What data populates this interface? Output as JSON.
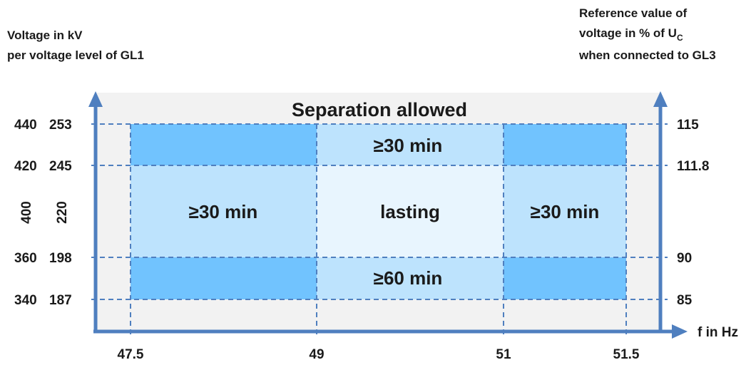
{
  "left_axis_title": [
    "Voltage in kV",
    "per voltage level of GL1"
  ],
  "right_axis_title": {
    "line1": "Reference value of",
    "line2_prefix": "voltage in % of U",
    "line2_sub": "C",
    "line3": "when connected to GL3"
  },
  "x_axis_label": "f in Hz",
  "outer_region_label": "Separation allowed",
  "left_ticks_400": [
    "440",
    "420",
    "400",
    "360",
    "340"
  ],
  "left_ticks_220": [
    "253",
    "245",
    "220",
    "198",
    "187"
  ],
  "right_ticks": [
    "115",
    "111.8",
    "90",
    "85"
  ],
  "x_ticks": [
    "47.5",
    "49",
    "51",
    "51.5"
  ],
  "zones": {
    "top_center": "≥30 min",
    "left_center": "≥30 min",
    "center": "lasting",
    "right_center": "≥30 min",
    "bottom_center": "≥60 min"
  },
  "colors": {
    "outer": "#f2f2f2",
    "dark_zone": "#71c3fe",
    "mid_zone": "#bde3fd",
    "light_zone": "#e8f5fe",
    "axis": "#4f7fbf"
  }
}
